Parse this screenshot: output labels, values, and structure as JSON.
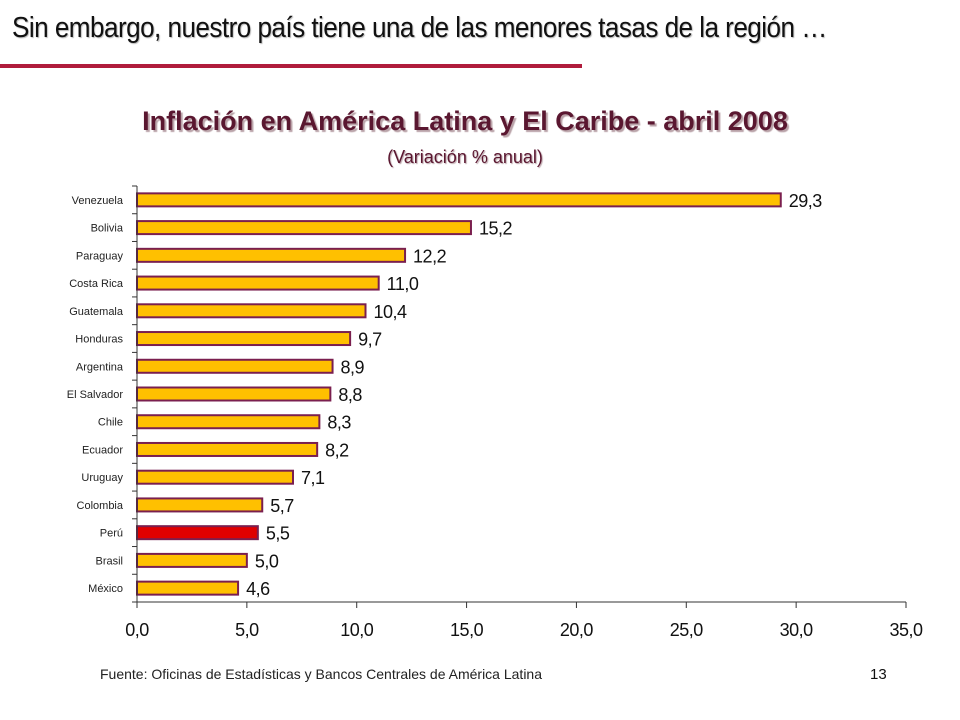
{
  "slide": {
    "title": "Sin embargo, nuestro país tiene una de las menores tasas de la región …",
    "source": "Fuente: Oficinas de Estadísticas y Bancos Centrales de América Latina",
    "page_number": "13",
    "accent_color": "#b01c3c"
  },
  "chart_data": {
    "type": "bar",
    "orientation": "horizontal",
    "title": "Inflación en América Latina y El Caribe - abril 2008",
    "subtitle": "(Variación % anual)",
    "categories": [
      "Venezuela",
      "Bolivia",
      "Paraguay",
      "Costa Rica",
      "Guatemala",
      "Honduras",
      "Argentina",
      "El Salvador",
      "Chile",
      "Ecuador",
      "Uruguay",
      "Colombia",
      "Perú",
      "Brasil",
      "México"
    ],
    "values": [
      29.3,
      15.2,
      12.2,
      11.0,
      10.4,
      9.7,
      8.9,
      8.8,
      8.3,
      8.2,
      7.1,
      5.7,
      5.5,
      5.0,
      4.6
    ],
    "value_labels": [
      "29,3",
      "15,2",
      "12,2",
      "11,0",
      "10,4",
      "9,7",
      "8,9",
      "8,8",
      "8,3",
      "8,2",
      "7,1",
      "5,7",
      "5,5",
      "5,0",
      "4,6"
    ],
    "highlight": "Perú",
    "xlim": [
      0,
      35
    ],
    "xticks": [
      0,
      5,
      10,
      15,
      20,
      25,
      30,
      35
    ],
    "xtick_labels": [
      "0,0",
      "5,0",
      "10,0",
      "15,0",
      "20,0",
      "25,0",
      "30,0",
      "35,0"
    ],
    "xlabel": "",
    "ylabel": "",
    "grid": false,
    "legend": "none",
    "colors": {
      "bar": "#ffc000",
      "bar_border": "#7a1f4f",
      "highlight": "#e00000",
      "axis": "#333333"
    }
  }
}
